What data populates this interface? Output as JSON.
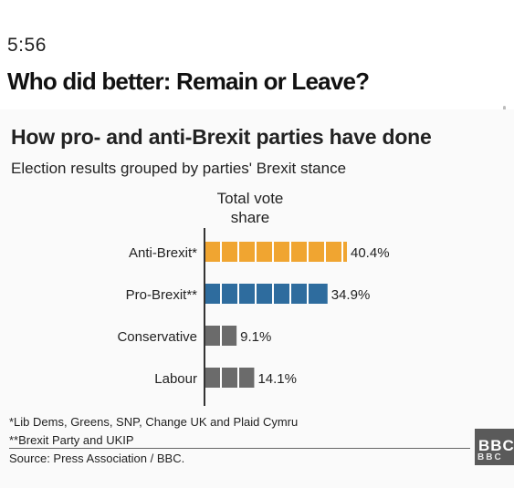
{
  "status_bar": {
    "time": "5:56"
  },
  "article": {
    "headline": "Who did better: Remain or Leave?"
  },
  "chart_data": {
    "type": "bar",
    "orientation": "horizontal",
    "title": "How pro- and anti-Brexit parties have done",
    "subtitle": "Election results grouped by parties' Brexit stance",
    "xlabel": "Total vote share",
    "categories": [
      "Anti-Brexit*",
      "Pro-Brexit**",
      "Conservative",
      "Labour"
    ],
    "values": [
      40.4,
      34.9,
      9.1,
      14.1
    ],
    "value_labels": [
      "40.4%",
      "34.9%",
      "9.1%",
      "14.1%"
    ],
    "colors": [
      "#f0a531",
      "#2e6c9e",
      "#6b6b6b",
      "#6b6b6b"
    ],
    "unit": "%",
    "xlim": [
      0,
      40.4
    ],
    "grid": false,
    "footnotes": [
      "*Lib Dems, Greens, SNP, Change UK and Plaid Cymru",
      "**Brexit Party and UKIP"
    ],
    "source": "Source: Press Association / BBC."
  },
  "logo": {
    "text": "BBC",
    "subtext": "BBC"
  }
}
